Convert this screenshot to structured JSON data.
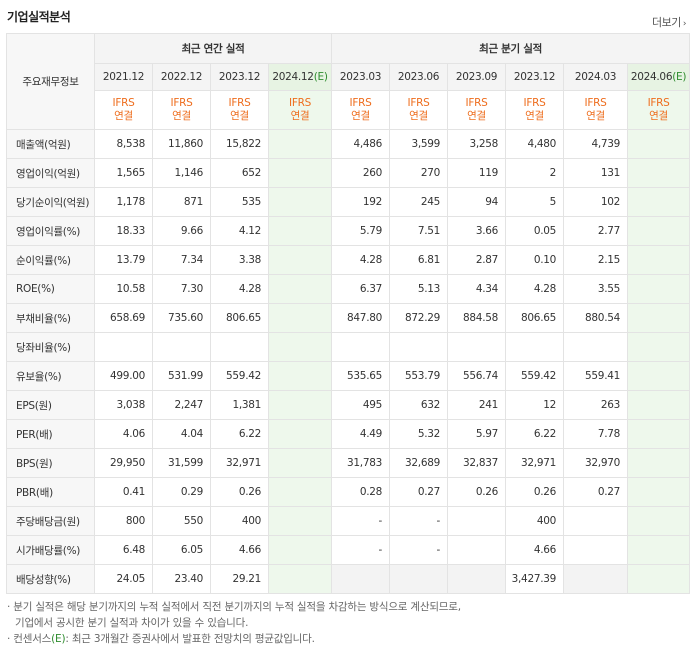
{
  "title": "기업실적분석",
  "more_label": "더보기",
  "corner_label": "주요재무정보",
  "groups": {
    "annual": "최근 연간 실적",
    "quarter": "최근 분기 실적"
  },
  "annual_periods": [
    "2021.12",
    "2022.12",
    "2023.12",
    "2024.12"
  ],
  "quarter_periods": [
    "2023.03",
    "2023.06",
    "2023.09",
    "2023.12",
    "2024.03",
    "2024.06"
  ],
  "estimate_mark": "(E)",
  "ifrs_label": "IFRS",
  "ifrs_sub": "연결",
  "rows": [
    {
      "label": "매출액(억원)",
      "annual": [
        "8,538",
        "11,860",
        "15,822",
        ""
      ],
      "quarter": [
        "4,486",
        "3,599",
        "3,258",
        "4,480",
        "4,739",
        ""
      ]
    },
    {
      "label": "영업이익(억원)",
      "annual": [
        "1,565",
        "1,146",
        "652",
        ""
      ],
      "quarter": [
        "260",
        "270",
        "119",
        "2",
        "131",
        ""
      ]
    },
    {
      "label": "당기순이익(억원)",
      "annual": [
        "1,178",
        "871",
        "535",
        ""
      ],
      "quarter": [
        "192",
        "245",
        "94",
        "5",
        "102",
        ""
      ]
    },
    {
      "label": "영업이익률(%)",
      "annual": [
        "18.33",
        "9.66",
        "4.12",
        ""
      ],
      "quarter": [
        "5.79",
        "7.51",
        "3.66",
        "0.05",
        "2.77",
        ""
      ]
    },
    {
      "label": "순이익률(%)",
      "annual": [
        "13.79",
        "7.34",
        "3.38",
        ""
      ],
      "quarter": [
        "4.28",
        "6.81",
        "2.87",
        "0.10",
        "2.15",
        ""
      ]
    },
    {
      "label": "ROE(%)",
      "annual": [
        "10.58",
        "7.30",
        "4.28",
        ""
      ],
      "quarter": [
        "6.37",
        "5.13",
        "4.34",
        "4.28",
        "3.55",
        ""
      ]
    },
    {
      "label": "부채비율(%)",
      "annual": [
        "658.69",
        "735.60",
        "806.65",
        ""
      ],
      "quarter": [
        "847.80",
        "872.29",
        "884.58",
        "806.65",
        "880.54",
        ""
      ]
    },
    {
      "label": "당좌비율(%)",
      "annual": [
        "",
        "",
        "",
        ""
      ],
      "quarter": [
        "",
        "",
        "",
        "",
        "",
        ""
      ]
    },
    {
      "label": "유보율(%)",
      "annual": [
        "499.00",
        "531.99",
        "559.42",
        ""
      ],
      "quarter": [
        "535.65",
        "553.79",
        "556.74",
        "559.42",
        "559.41",
        ""
      ]
    },
    {
      "label": "EPS(원)",
      "annual": [
        "3,038",
        "2,247",
        "1,381",
        ""
      ],
      "quarter": [
        "495",
        "632",
        "241",
        "12",
        "263",
        ""
      ]
    },
    {
      "label": "PER(배)",
      "annual": [
        "4.06",
        "4.04",
        "6.22",
        ""
      ],
      "quarter": [
        "4.49",
        "5.32",
        "5.97",
        "6.22",
        "7.78",
        ""
      ]
    },
    {
      "label": "BPS(원)",
      "annual": [
        "29,950",
        "31,599",
        "32,971",
        ""
      ],
      "quarter": [
        "31,783",
        "32,689",
        "32,837",
        "32,971",
        "32,970",
        ""
      ]
    },
    {
      "label": "PBR(배)",
      "annual": [
        "0.41",
        "0.29",
        "0.26",
        ""
      ],
      "quarter": [
        "0.28",
        "0.27",
        "0.26",
        "0.26",
        "0.27",
        ""
      ]
    },
    {
      "label": "주당배당금(원)",
      "annual": [
        "800",
        "550",
        "400",
        ""
      ],
      "quarter": [
        "-",
        "-",
        "",
        "400",
        "",
        ""
      ]
    },
    {
      "label": "시가배당률(%)",
      "annual": [
        "6.48",
        "6.05",
        "4.66",
        ""
      ],
      "quarter": [
        "-",
        "-",
        "",
        "4.66",
        "",
        ""
      ]
    },
    {
      "label": "배당성향(%)",
      "annual": [
        "24.05",
        "23.40",
        "29.21",
        ""
      ],
      "quarter": [
        "",
        "",
        "",
        "3,427.39",
        "",
        ""
      ]
    }
  ],
  "notes": [
    "· 분기 실적은 해당 분기까지의 누적 실적에서 직전 분기까지의 누적 실적을 차감하는 방식으로 계산되므로,",
    "기업에서 공시한 분기 실적과 차이가 있을 수 있습니다.",
    "· 컨센서스",
    ": 최근 3개월간 증권사에서 발표한 전망치의 평균값입니다."
  ]
}
